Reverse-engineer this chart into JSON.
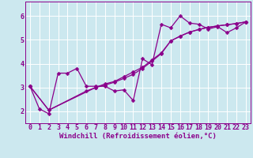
{
  "background_color": "#cce8ef",
  "grid_color": "#ffffff",
  "line_color": "#8b008b",
  "xlabel": "Windchill (Refroidissement éolien,°C)",
  "xlim": [
    -0.5,
    23.5
  ],
  "ylim": [
    1.5,
    6.6
  ],
  "yticks": [
    2,
    3,
    4,
    5,
    6
  ],
  "xticks": [
    0,
    1,
    2,
    3,
    4,
    5,
    6,
    7,
    8,
    9,
    10,
    11,
    12,
    13,
    14,
    15,
    16,
    17,
    18,
    19,
    20,
    21,
    22,
    23
  ],
  "series1_x": [
    0,
    1,
    2,
    3,
    4,
    5,
    6,
    7,
    8,
    9,
    10,
    11,
    12,
    13,
    14,
    15,
    16,
    17,
    18,
    19,
    20,
    21,
    22,
    23
  ],
  "series1_y": [
    3.05,
    2.1,
    1.9,
    3.6,
    3.6,
    3.8,
    3.05,
    3.05,
    3.05,
    2.85,
    2.9,
    2.45,
    4.2,
    3.95,
    5.65,
    5.5,
    6.0,
    5.7,
    5.65,
    5.45,
    5.55,
    5.3,
    5.5,
    5.75
  ],
  "series2_x": [
    0,
    2,
    6,
    7,
    8,
    9,
    10,
    11,
    12,
    13,
    14,
    15,
    16,
    17,
    18,
    19,
    20,
    21,
    22,
    23
  ],
  "series2_y": [
    3.05,
    2.05,
    2.85,
    3.0,
    3.15,
    3.25,
    3.45,
    3.65,
    3.85,
    4.15,
    4.45,
    4.95,
    5.15,
    5.32,
    5.43,
    5.52,
    5.58,
    5.63,
    5.68,
    5.75
  ],
  "series3_x": [
    0,
    2,
    7,
    8,
    9,
    10,
    11,
    12,
    13,
    14,
    15,
    16,
    17,
    18,
    19,
    20,
    21,
    22,
    23
  ],
  "series3_y": [
    3.05,
    2.05,
    3.0,
    3.1,
    3.22,
    3.38,
    3.55,
    3.8,
    4.1,
    4.42,
    4.95,
    5.15,
    5.32,
    5.43,
    5.52,
    5.58,
    5.63,
    5.68,
    5.75
  ],
  "xlabel_fontsize": 6.5,
  "tick_fontsize": 6.0,
  "linewidth": 0.9,
  "markersize": 2.5
}
